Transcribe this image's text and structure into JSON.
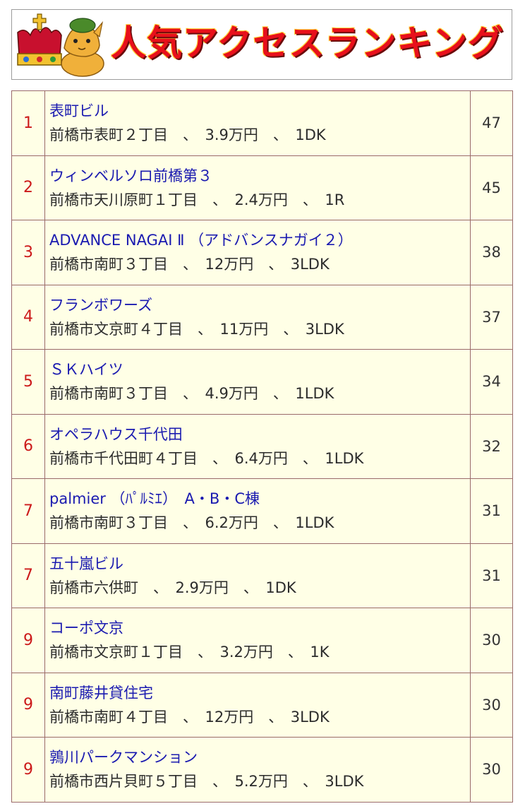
{
  "banner": {
    "title": "人気アクセスランキング",
    "mascot_icon": "crowned-horse-mascot-icon",
    "colors": {
      "title": "#e8101b",
      "crown": "#c8102e",
      "mascot": "#f0b03a"
    }
  },
  "ranking": [
    {
      "rank": "1",
      "name": "表町ビル",
      "detail": "前橋市表町２丁目　、　3.9万円　、　1DK",
      "count": "47"
    },
    {
      "rank": "2",
      "name": "ウィンベルソロ前橋第３",
      "detail": "前橋市天川原町１丁目　、　2.4万円　、　1R",
      "count": "45"
    },
    {
      "rank": "3",
      "name": "ADVANCE NAGAI Ⅱ （アドバンスナガイ２）",
      "detail": "前橋市南町３丁目　、　12万円　、　3LDK",
      "count": "38"
    },
    {
      "rank": "4",
      "name": "フランボワーズ",
      "detail": "前橋市文京町４丁目　、　11万円　、　3LDK",
      "count": "37"
    },
    {
      "rank": "5",
      "name": "ＳＫハイツ",
      "detail": "前橋市南町３丁目　、　4.9万円　、　1LDK",
      "count": "34"
    },
    {
      "rank": "6",
      "name": "オペラハウス千代田",
      "detail": "前橋市千代田町４丁目　、　6.4万円　、　1LDK",
      "count": "32"
    },
    {
      "rank": "7",
      "name": "palmier （ﾊﾟﾙﾐｴ）　A・B・C棟",
      "detail": "前橋市南町３丁目　、　6.2万円　、　1LDK",
      "count": "31"
    },
    {
      "rank": "7",
      "name": "五十嵐ビル",
      "detail": "前橋市六供町　、　2.9万円　、　1DK",
      "count": "31"
    },
    {
      "rank": "9",
      "name": "コーポ文京",
      "detail": "前橋市文京町１丁目　、　3.2万円　、　1K",
      "count": "30"
    },
    {
      "rank": "9",
      "name": "南町藤井貸住宅",
      "detail": "前橋市南町４丁目　、　12万円　、　3LDK",
      "count": "30"
    },
    {
      "rank": "9",
      "name": "鶉川パークマンション",
      "detail": "前橋市西片貝町５丁目　、　5.2万円　、　3LDK",
      "count": "30"
    }
  ]
}
